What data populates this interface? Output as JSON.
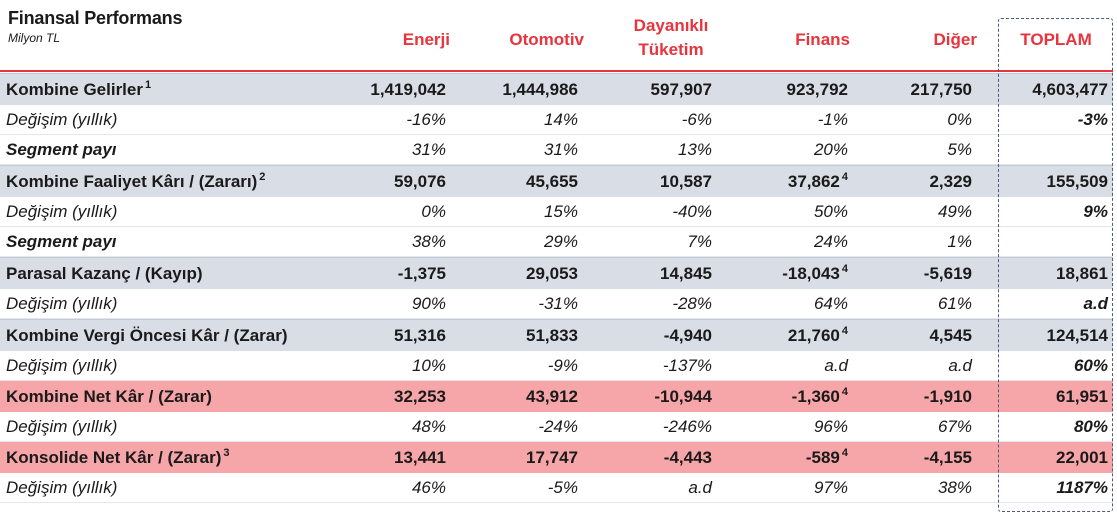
{
  "title": "Finansal Performans",
  "subtitle": "Milyon TL",
  "columns": [
    "Enerji",
    "Otomotiv",
    "Dayanıklı Tüketim",
    "Finans",
    "Diğer",
    "TOPLAM"
  ],
  "column3_lines": [
    "Dayanıklı",
    "Tüketim"
  ],
  "rows": [
    {
      "label": "Kombine Gelirler",
      "sup": "1",
      "values": [
        "1,419,042",
        "1,444,986",
        "597,907",
        "923,792",
        "217,750",
        "4,603,477"
      ],
      "note": ""
    },
    {
      "label": "Değişim (yıllık)",
      "values": [
        "-16%",
        "14%",
        "-6%",
        "-1%",
        "0%",
        "-3%"
      ]
    },
    {
      "label": "Segment payı",
      "values": [
        "31%",
        "31%",
        "13%",
        "20%",
        "5%",
        ""
      ]
    },
    {
      "label": "Kombine Faaliyet Kârı / (Zararı)",
      "sup": "2",
      "values": [
        "59,076",
        "45,655",
        "10,587",
        "37,862",
        "2,329",
        "155,509"
      ],
      "note": "4"
    },
    {
      "label": "Değişim (yıllık)",
      "values": [
        "0%",
        "15%",
        "-40%",
        "50%",
        "49%",
        "9%"
      ]
    },
    {
      "label": "Segment payı",
      "values": [
        "38%",
        "29%",
        "7%",
        "24%",
        "1%",
        ""
      ]
    },
    {
      "label": "Parasal Kazanç / (Kayıp)",
      "sup": "",
      "values": [
        "-1,375",
        "29,053",
        "14,845",
        "-18,043",
        "-5,619",
        "18,861"
      ],
      "note": "4"
    },
    {
      "label": "Değişim (yıllık)",
      "values": [
        "90%",
        "-31%",
        "-28%",
        "64%",
        "61%",
        "a.d"
      ]
    },
    {
      "label": "Kombine Vergi Öncesi Kâr / (Zarar)",
      "sup": "",
      "values": [
        "51,316",
        "51,833",
        "-4,940",
        "21,760",
        "4,545",
        "124,514"
      ],
      "note": "4"
    },
    {
      "label": "Değişim (yıllık)",
      "values": [
        "10%",
        "-9%",
        "-137%",
        "a.d",
        "a.d",
        "60%"
      ]
    },
    {
      "label": "Kombine Net Kâr / (Zarar)",
      "sup": "",
      "values": [
        "32,253",
        "43,912",
        "-10,944",
        "-1,360",
        "-1,910",
        "61,951"
      ],
      "note": "4"
    },
    {
      "label": "Değişim (yıllık)",
      "values": [
        "48%",
        "-24%",
        "-246%",
        "96%",
        "67%",
        "80%"
      ]
    },
    {
      "label": "Konsolide Net Kâr / (Zarar)",
      "sup": "3",
      "values": [
        "13,441",
        "17,747",
        "-4,443",
        "-589",
        "-4,155",
        "22,001"
      ],
      "note": "4"
    },
    {
      "label": "Değişim (yıllık)",
      "values": [
        "46%",
        "-5%",
        "a.d",
        "97%",
        "38%",
        "1187%"
      ]
    }
  ],
  "colors": {
    "header_red": "#e8343d",
    "gray_band": "#d9dde6",
    "pink_band": "#f6a5a8",
    "box_border": "#4b5a78"
  }
}
